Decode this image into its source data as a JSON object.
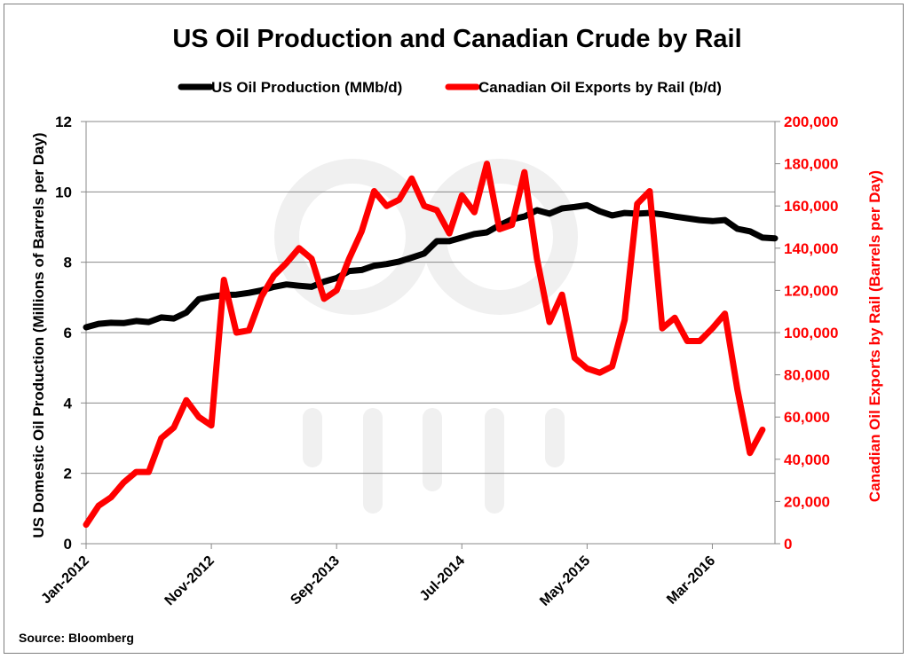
{
  "chart_data": {
    "type": "line",
    "title": "US Oil Production and Canadian Crude by Rail",
    "source": "Source: Bloomberg",
    "legend_position": "top",
    "grid": "horizontal",
    "y_left": {
      "label": "US Domestic Oil Production (Millions of Barrels per Day)",
      "ylim": [
        0,
        12
      ],
      "ticks": [
        "0",
        "2",
        "4",
        "6",
        "8",
        "10",
        "12"
      ]
    },
    "y_right": {
      "label": "Canadian Oil Exports by Rail (Barrels per Day)",
      "ylim": [
        0,
        200000
      ],
      "ticks": [
        "0",
        "20,000",
        "40,000",
        "60,000",
        "80,000",
        "100,000",
        "120,000",
        "140,000",
        "160,000",
        "180,000",
        "200,000"
      ]
    },
    "x_ticks": [
      "Jan-2012",
      "Nov-2012",
      "Sep-2013",
      "Jul-2014",
      "May-2015",
      "Mar-2016"
    ],
    "x_tick_months": [
      0,
      10,
      20,
      30,
      40,
      50
    ],
    "x_range_months": [
      0,
      55
    ],
    "series": [
      {
        "name": "US Oil Production (MMb/d)",
        "color": "#000000",
        "axis": "left",
        "values": [
          6.15,
          6.25,
          6.28,
          6.27,
          6.33,
          6.3,
          6.43,
          6.4,
          6.57,
          6.95,
          7.02,
          7.07,
          7.08,
          7.13,
          7.2,
          7.3,
          7.37,
          7.33,
          7.3,
          7.45,
          7.55,
          7.75,
          7.78,
          7.9,
          7.95,
          8.02,
          8.13,
          8.25,
          8.6,
          8.6,
          8.7,
          8.8,
          8.85,
          9.05,
          9.22,
          9.3,
          9.48,
          9.38,
          9.53,
          9.57,
          9.62,
          9.45,
          9.33,
          9.4,
          9.38,
          9.4,
          9.36,
          9.3,
          9.25,
          9.2,
          9.17,
          9.2,
          8.95,
          8.88,
          8.7,
          8.68
        ]
      },
      {
        "name": "Canadian Oil Exports by Rail (b/d)",
        "color": "#ff0000",
        "axis": "right",
        "values": [
          9000,
          18000,
          22000,
          29000,
          34000,
          34000,
          50000,
          55000,
          68000,
          60000,
          56000,
          125000,
          100000,
          101000,
          117000,
          127000,
          133000,
          140000,
          135000,
          116000,
          120000,
          135000,
          148000,
          167000,
          160000,
          163000,
          173000,
          160000,
          158000,
          147000,
          165000,
          157000,
          180000,
          149000,
          151000,
          176000,
          135000,
          105000,
          118000,
          88000,
          83000,
          81000,
          84000,
          106000,
          161000,
          167000,
          102000,
          107000,
          96000,
          96000,
          102000,
          109000,
          73000,
          43000,
          54000
        ]
      }
    ]
  }
}
